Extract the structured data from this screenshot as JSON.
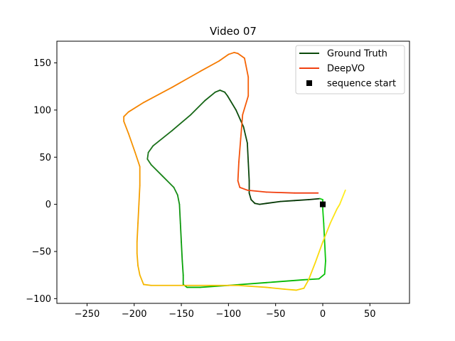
{
  "chart_data": {
    "type": "line",
    "title": "Video 07",
    "xlabel": "",
    "ylabel": "",
    "xlim": [
      -282,
      92
    ],
    "ylim": [
      -105,
      173
    ],
    "xticks": [
      -250,
      -200,
      -150,
      -100,
      -50,
      0,
      50
    ],
    "yticks": [
      -100,
      -50,
      0,
      50,
      100,
      150
    ],
    "grid": false,
    "legend_position": "top-right",
    "series": [
      {
        "name": "Ground Truth",
        "legend_color": "#0b4a0b",
        "gradient": [
          "#003000",
          "#0b4a0b",
          "#1e7a1e",
          "#00b000",
          "#10d010"
        ],
        "points": [
          [
            -3,
            6
          ],
          [
            -15,
            5
          ],
          [
            -30,
            4
          ],
          [
            -45,
            3
          ],
          [
            -60,
            1
          ],
          [
            -67,
            0
          ],
          [
            -72,
            1
          ],
          [
            -76,
            5
          ],
          [
            -78,
            12
          ],
          [
            -78,
            25
          ],
          [
            -79,
            45
          ],
          [
            -80,
            65
          ],
          [
            -84,
            82
          ],
          [
            -92,
            100
          ],
          [
            -101,
            115
          ],
          [
            -104,
            119
          ],
          [
            -109,
            121
          ],
          [
            -114,
            119
          ],
          [
            -125,
            110
          ],
          [
            -140,
            95
          ],
          [
            -160,
            78
          ],
          [
            -180,
            62
          ],
          [
            -185,
            55
          ],
          [
            -186,
            48
          ],
          [
            -182,
            42
          ],
          [
            -170,
            30
          ],
          [
            -158,
            18
          ],
          [
            -154,
            10
          ],
          [
            -152,
            0
          ],
          [
            -151,
            -20
          ],
          [
            -150,
            -40
          ],
          [
            -149,
            -60
          ],
          [
            -148,
            -75
          ],
          [
            -148,
            -85
          ],
          [
            -144,
            -88
          ],
          [
            -130,
            -88
          ],
          [
            -100,
            -86
          ],
          [
            -60,
            -83
          ],
          [
            -20,
            -80
          ],
          [
            -4,
            -79
          ],
          [
            2,
            -74
          ],
          [
            3,
            -60
          ],
          [
            2,
            -40
          ],
          [
            1,
            -20
          ],
          [
            0,
            -5
          ],
          [
            0,
            5
          ],
          [
            -3,
            6
          ]
        ]
      },
      {
        "name": "DeepVO",
        "legend_color": "#f04010",
        "gradient": [
          "#f03a10",
          "#f55a08",
          "#f57a00",
          "#f59500",
          "#f5b500",
          "#f8d000",
          "#ffee20"
        ],
        "points": [
          [
            -5,
            12
          ],
          [
            -30,
            12
          ],
          [
            -60,
            13
          ],
          [
            -80,
            15
          ],
          [
            -88,
            18
          ],
          [
            -90,
            25
          ],
          [
            -89,
            45
          ],
          [
            -87,
            70
          ],
          [
            -85,
            95
          ],
          [
            -79,
            115
          ],
          [
            -79,
            135
          ],
          [
            -82,
            150
          ],
          [
            -83,
            155
          ],
          [
            -90,
            160
          ],
          [
            -94,
            161
          ],
          [
            -100,
            159
          ],
          [
            -110,
            152
          ],
          [
            -130,
            141
          ],
          [
            -160,
            124
          ],
          [
            -190,
            108
          ],
          [
            -206,
            98
          ],
          [
            -211,
            93
          ],
          [
            -211,
            88
          ],
          [
            -206,
            75
          ],
          [
            -199,
            55
          ],
          [
            -194,
            40
          ],
          [
            -194,
            20
          ],
          [
            -195,
            0
          ],
          [
            -196,
            -20
          ],
          [
            -197,
            -40
          ],
          [
            -197,
            -52
          ],
          [
            -196,
            -65
          ],
          [
            -194,
            -75
          ],
          [
            -190,
            -85
          ],
          [
            -182,
            -86
          ],
          [
            -150,
            -86
          ],
          [
            -120,
            -86
          ],
          [
            -90,
            -86
          ],
          [
            -60,
            -88
          ],
          [
            -40,
            -90
          ],
          [
            -28,
            -91
          ],
          [
            -20,
            -89
          ],
          [
            -15,
            -80
          ],
          [
            -8,
            -62
          ],
          [
            0,
            -40
          ],
          [
            8,
            -20
          ],
          [
            15,
            -5
          ],
          [
            18,
            0
          ],
          [
            20,
            5
          ],
          [
            24,
            15
          ]
        ]
      },
      {
        "name": "sequence start",
        "marker": "square",
        "color": "#000000",
        "points": [
          [
            0,
            0
          ]
        ]
      }
    ]
  }
}
